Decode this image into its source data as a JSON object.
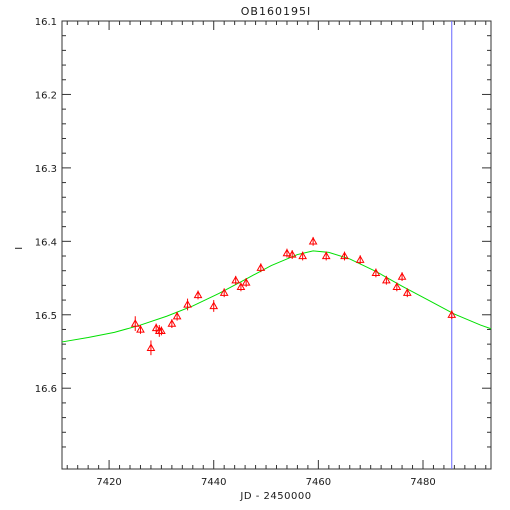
{
  "chart_data": {
    "type": "scatter",
    "title": "OB160195I",
    "xlabel": "JD - 2450000",
    "ylabel": "I",
    "xlim": [
      7411,
      7493
    ],
    "ylim": [
      16.71,
      16.1
    ],
    "y_inverted": true,
    "grid": false,
    "x_ticks": [
      7420,
      7440,
      7460,
      7480
    ],
    "x_tick_labels": [
      "7420",
      "7440",
      "7460",
      "7480"
    ],
    "y_ticks": [
      16.1,
      16.2,
      16.3,
      16.4,
      16.5,
      16.6
    ],
    "y_tick_labels": [
      "16.1",
      "16.2",
      "16.3",
      "16.4",
      "16.5",
      "16.6"
    ],
    "colors": {
      "points": "#ff0000",
      "model": "#00e000",
      "marker_line": "#6666ff",
      "axes": "#333333"
    },
    "series": [
      {
        "kind": "points",
        "marker": "triangle",
        "x": [
          7425.0,
          7426.0,
          7428.0,
          7429.0,
          7429.6,
          7430.0,
          7432.0,
          7433.0,
          7435.0,
          7437.0,
          7440.0,
          7442.0,
          7444.2,
          7445.2,
          7446.2,
          7449.0,
          7454.0,
          7455.0,
          7457.0,
          7459.0,
          7461.5,
          7465.0,
          7468.0,
          7471.0,
          7473.0,
          7475.0,
          7476.0,
          7477.0,
          7485.5
        ],
        "y": [
          16.512,
          16.52,
          16.545,
          16.518,
          16.522,
          16.522,
          16.512,
          16.502,
          16.486,
          16.473,
          16.488,
          16.47,
          16.453,
          16.462,
          16.456,
          16.436,
          16.416,
          16.418,
          16.42,
          16.4,
          16.42,
          16.42,
          16.425,
          16.443,
          16.453,
          16.462,
          16.448,
          16.47,
          16.5
        ],
        "err": [
          0.01,
          0.006,
          0.01,
          0.006,
          0.008,
          0.006,
          0.006,
          0.006,
          0.008,
          0.006,
          0.008,
          0.006,
          0.006,
          0.006,
          0.006,
          0.006,
          0.006,
          0.006,
          0.006,
          0.006,
          0.006,
          0.006,
          0.006,
          0.006,
          0.006,
          0.006,
          0.006,
          0.006,
          0.006
        ]
      },
      {
        "kind": "model",
        "x": [
          7411,
          7416,
          7421,
          7426,
          7431,
          7436,
          7441,
          7446,
          7451,
          7456,
          7459,
          7462,
          7466,
          7471,
          7476,
          7481,
          7486,
          7491,
          7493
        ],
        "y": [
          16.537,
          16.531,
          16.524,
          16.514,
          16.502,
          16.488,
          16.471,
          16.452,
          16.433,
          16.418,
          16.413,
          16.415,
          16.424,
          16.441,
          16.461,
          16.48,
          16.499,
          16.514,
          16.519
        ]
      }
    ],
    "vertical_line_x": 7485.5
  }
}
